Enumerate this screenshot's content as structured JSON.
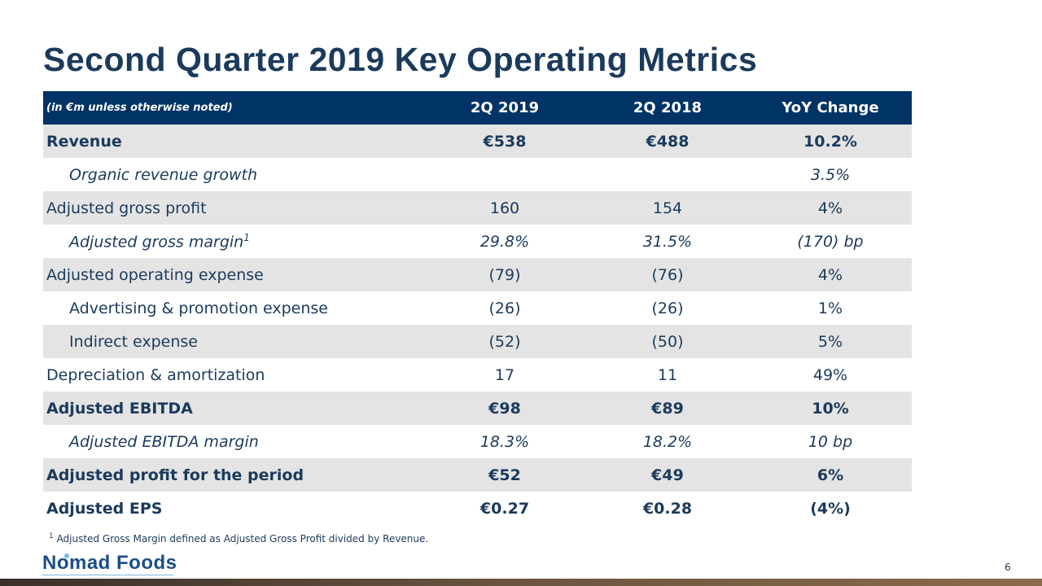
{
  "title": "Second Quarter 2019 Key Operating Metrics",
  "table": {
    "header": {
      "note": "(in €m unless otherwise noted)",
      "col1": "2Q 2019",
      "col2": "2Q 2018",
      "col3": "YoY Change"
    },
    "rows": [
      {
        "label": "Revenue",
        "v1": "€538",
        "v2": "€488",
        "v3": "10.2%"
      },
      {
        "label": "Organic revenue growth",
        "v1": "",
        "v2": "",
        "v3": "3.5%"
      },
      {
        "label": "Adjusted gross profit",
        "v1": "160",
        "v2": "154",
        "v3": "4%"
      },
      {
        "label": "Adjusted gross margin",
        "sup": "1",
        "v1": "29.8%",
        "v2": "31.5%",
        "v3": "(170) bp"
      },
      {
        "label": "Adjusted operating expense",
        "v1": "(79)",
        "v2": "(76)",
        "v3": "4%"
      },
      {
        "label": "Advertising & promotion expense",
        "v1": "(26)",
        "v2": "(26)",
        "v3": "1%"
      },
      {
        "label": "Indirect expense",
        "v1": "(52)",
        "v2": "(50)",
        "v3": "5%"
      },
      {
        "label": "Depreciation & amortization",
        "v1": "17",
        "v2": "11",
        "v3": "49%"
      },
      {
        "label": "Adjusted EBITDA",
        "v1": "€98",
        "v2": "€89",
        "v3": "10%"
      },
      {
        "label": "Adjusted EBITDA margin",
        "v1": "18.3%",
        "v2": "18.2%",
        "v3": "10 bp"
      },
      {
        "label": "Adjusted profit for the period",
        "v1": "€52",
        "v2": "€49",
        "v3": "6%"
      },
      {
        "label": "Adjusted EPS",
        "v1": "€0.27",
        "v2": "€0.28",
        "v3": "(4%)"
      }
    ]
  },
  "footnote": {
    "marker": "1",
    "text": "Adjusted Gross Margin defined as Adjusted Gross Profit divided by Revenue."
  },
  "logo": "Nomad Foods",
  "page_number": "6"
}
